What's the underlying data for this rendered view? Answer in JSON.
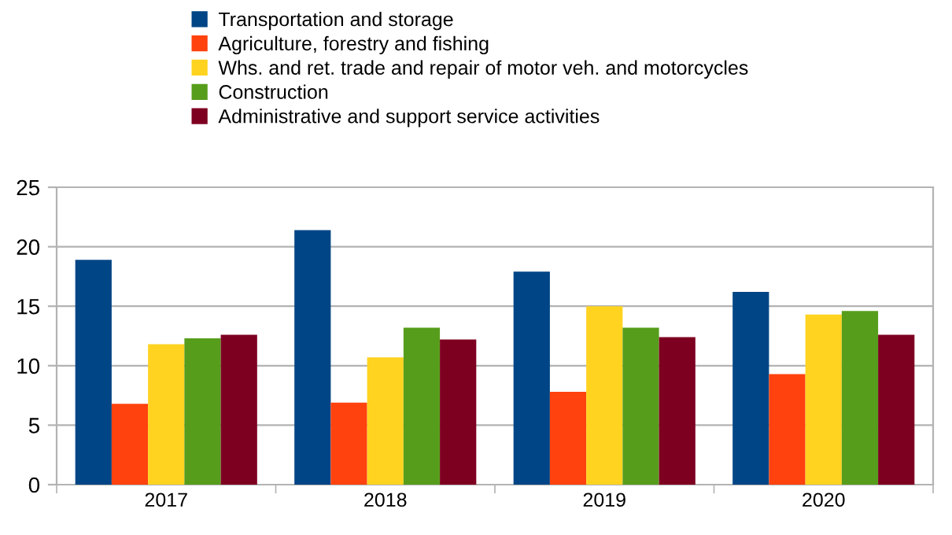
{
  "chart_data": {
    "type": "bar",
    "categories": [
      "2017",
      "2018",
      "2019",
      "2020"
    ],
    "series": [
      {
        "name": "Transportation and storage",
        "color": "#004586",
        "values": [
          18.9,
          21.4,
          17.9,
          16.2
        ]
      },
      {
        "name": "Agriculture, forestry and fishing",
        "color": "#ff420e",
        "values": [
          6.8,
          6.9,
          7.8,
          9.3
        ]
      },
      {
        "name": "Whs. and ret. trade and repair of motor veh. and motorcycles",
        "color": "#ffd320",
        "values": [
          11.8,
          10.7,
          15.0,
          14.3
        ]
      },
      {
        "name": "Construction",
        "color": "#579d1c",
        "values": [
          12.3,
          13.2,
          13.2,
          14.6
        ]
      },
      {
        "name": "Administrative and support service activities",
        "color": "#7e0021",
        "values": [
          12.6,
          12.2,
          12.4,
          12.6
        ]
      }
    ],
    "ylim": [
      0,
      25
    ],
    "yticks": [
      0,
      5,
      10,
      15,
      20,
      25
    ],
    "grid": "y",
    "legend": "top"
  }
}
